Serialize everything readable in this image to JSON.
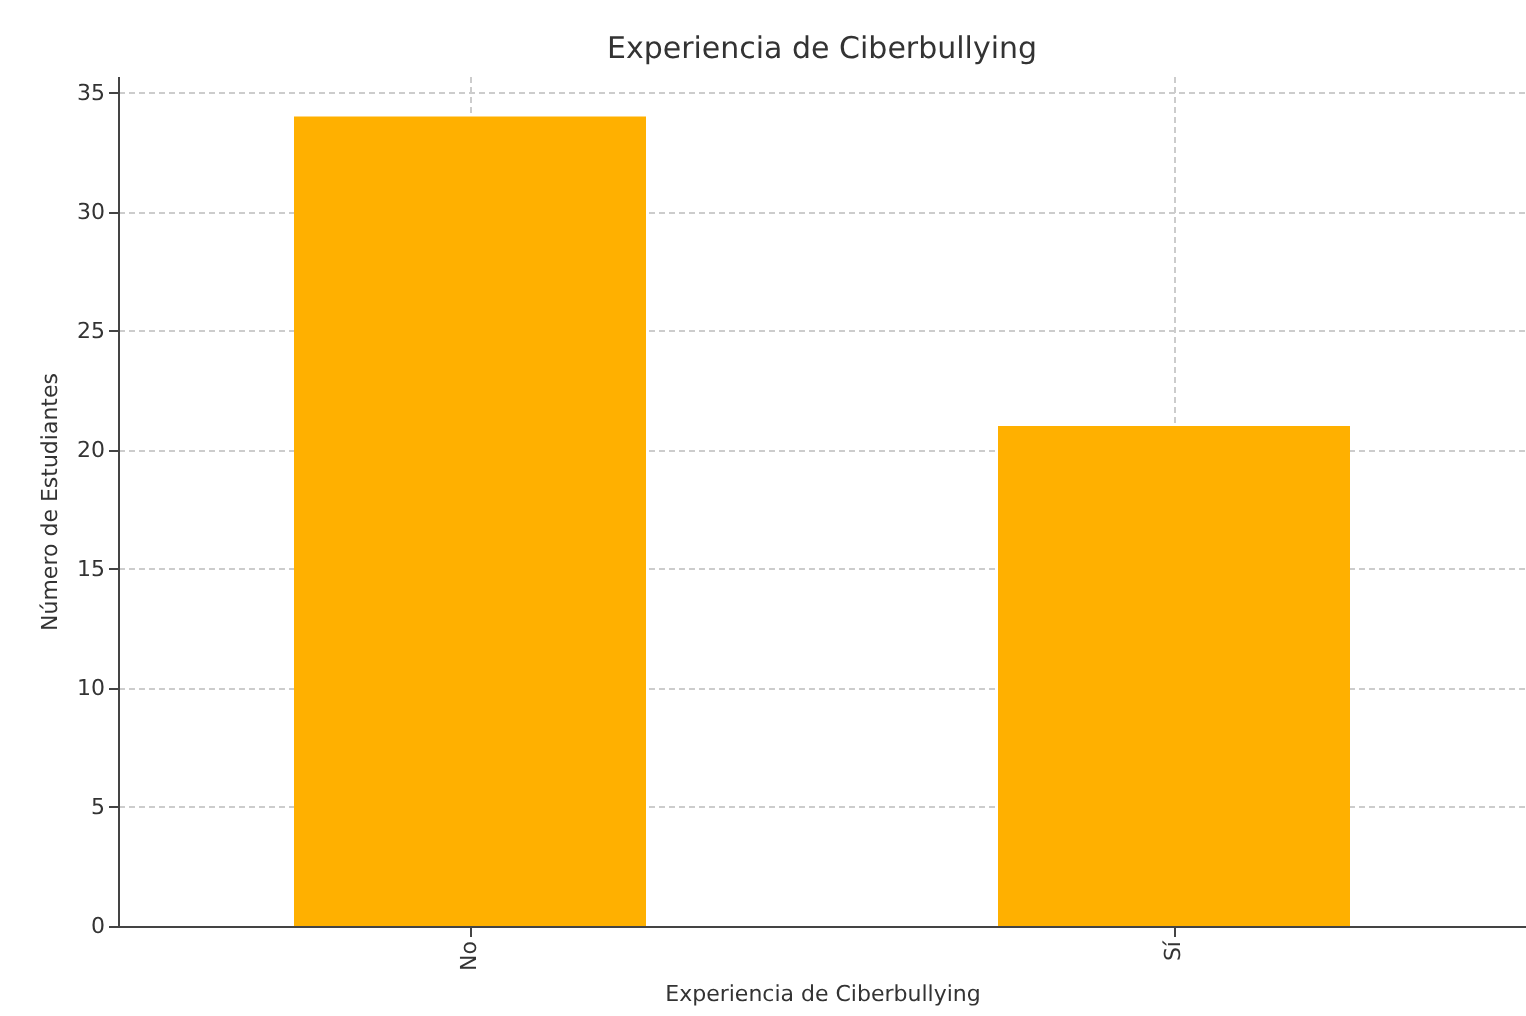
{
  "chart_data": {
    "type": "bar",
    "title": "Experiencia de Ciberbullying",
    "xlabel": "Experiencia de Ciberbullying",
    "ylabel": "Número de Estudiantes",
    "categories": [
      "No",
      "Sí"
    ],
    "values": [
      34,
      21
    ],
    "color": "#ffb000",
    "ylim": [
      0,
      35.7
    ],
    "yticks": [
      0,
      5,
      10,
      15,
      20,
      25,
      30,
      35
    ],
    "grid": true
  }
}
